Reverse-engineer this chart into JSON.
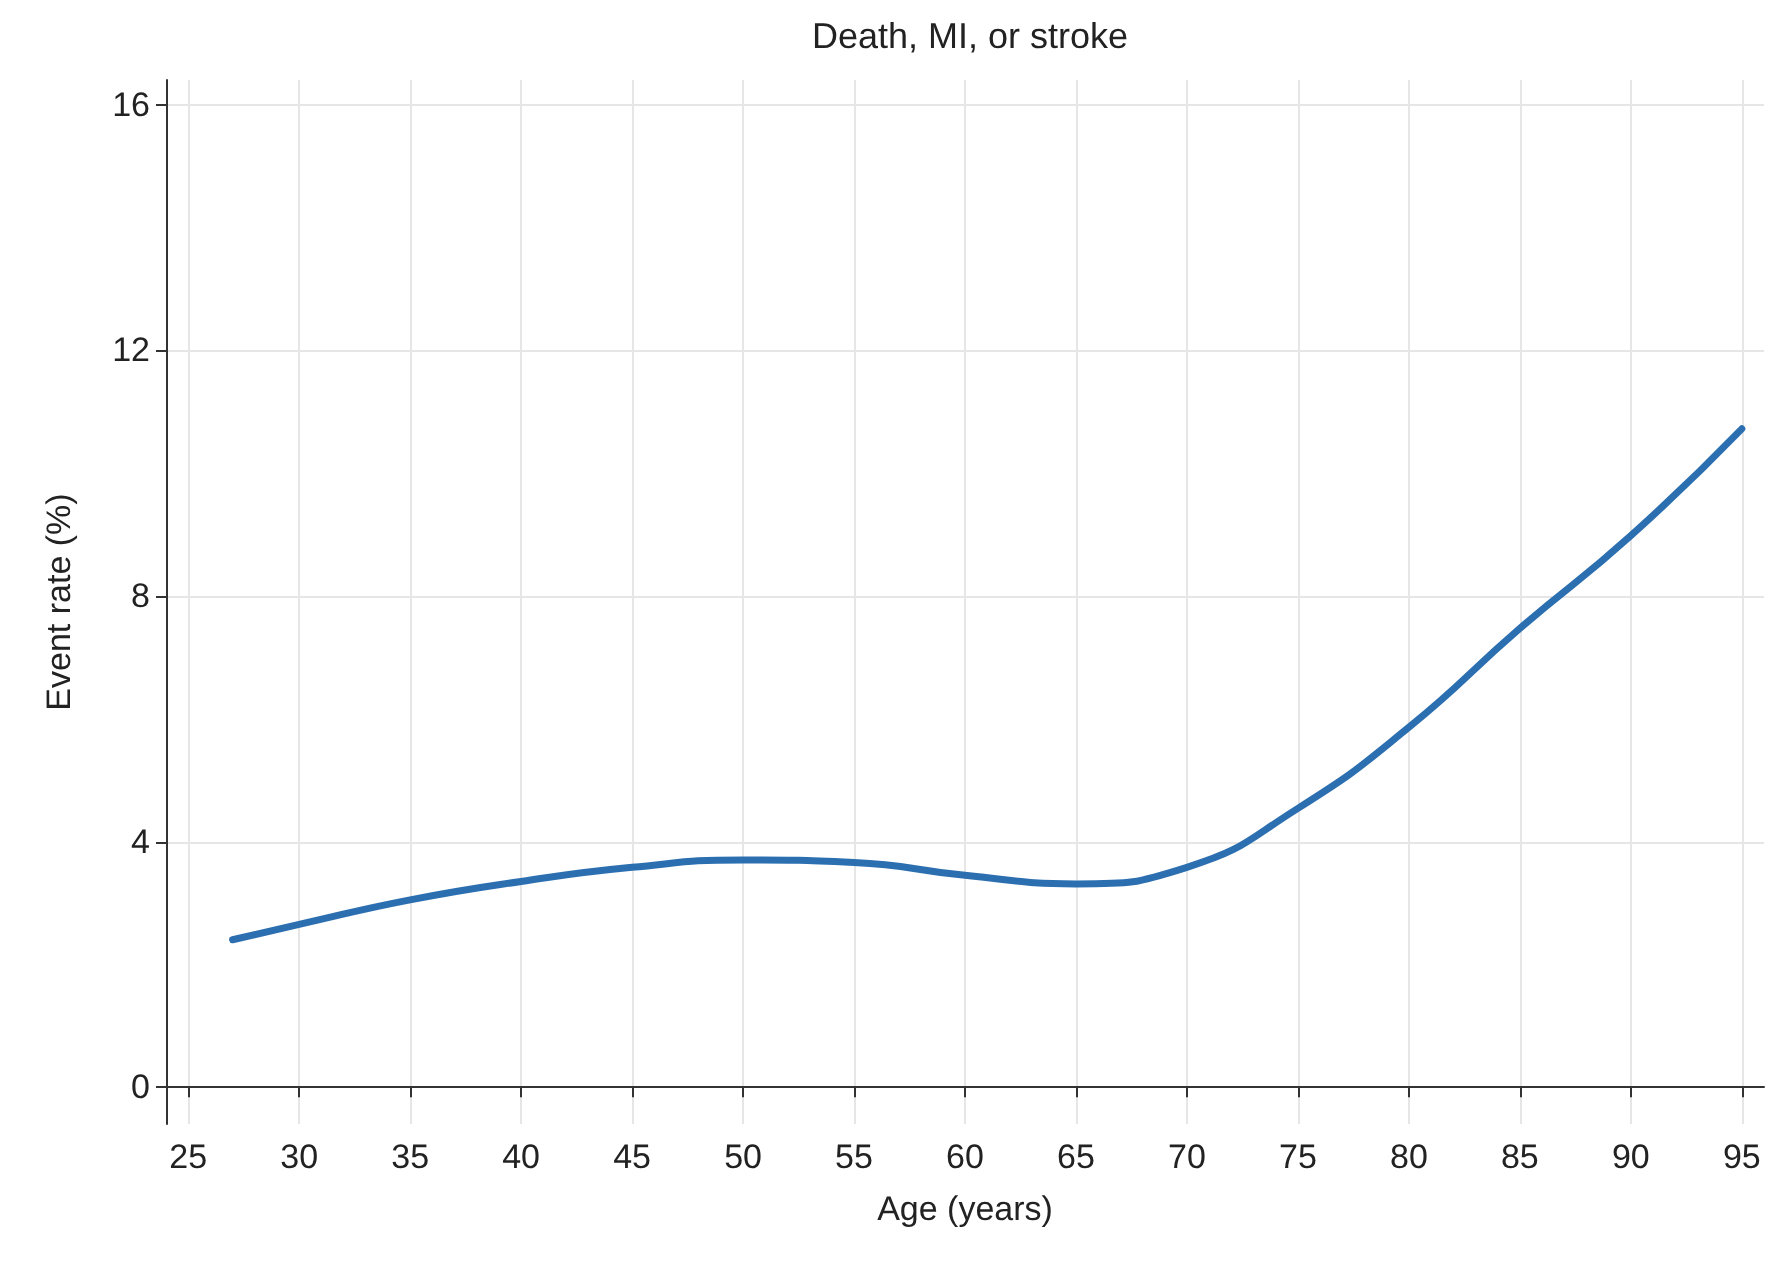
{
  "chart_data": {
    "type": "line",
    "title": "Death, MI, or stroke",
    "xlabel": "Age (years)",
    "ylabel": "Event rate (%)",
    "x": [
      27,
      30,
      35,
      40,
      45,
      50,
      55,
      60,
      65,
      70,
      75,
      80,
      85,
      90,
      95
    ],
    "series": [
      {
        "color": "#2c6fb0",
        "values": [
          2.4,
          2.65,
          3.05,
          3.35,
          3.58,
          3.7,
          3.66,
          3.45,
          3.31,
          3.58,
          4.54,
          5.86,
          7.47,
          8.98,
          10.72
        ]
      }
    ],
    "xlim": [
      24,
      96
    ],
    "xticks": [
      25,
      30,
      35,
      40,
      45,
      50,
      55,
      60,
      65,
      70,
      75,
      80,
      85,
      90,
      95
    ],
    "ylim": [
      -0.6,
      16.4
    ],
    "yticks": [
      0,
      4,
      8,
      12,
      16
    ],
    "grid": true,
    "marker": "none",
    "line_style": "solid"
  }
}
